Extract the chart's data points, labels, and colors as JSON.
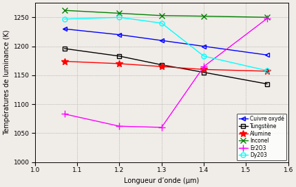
{
  "xlabel": "Longueur d’onde (μm)",
  "ylabel": "Températures de luminance (K)",
  "xlim": [
    1.0,
    1.6
  ],
  "ylim": [
    1000,
    1275
  ],
  "yticks": [
    1000,
    1050,
    1100,
    1150,
    1200,
    1250
  ],
  "xticks": [
    1.0,
    1.1,
    1.2,
    1.3,
    1.4,
    1.5,
    1.6
  ],
  "series": {
    "Cuivre oxydé": {
      "x": [
        1.07,
        1.2,
        1.3,
        1.4,
        1.55
      ],
      "y": [
        1230,
        1220,
        1210,
        1200,
        1185
      ],
      "color": "blue",
      "marker": "<",
      "markersize": 5,
      "markerfacecolor": "none",
      "linewidth": 1.0
    },
    "Tungstène": {
      "x": [
        1.07,
        1.2,
        1.3,
        1.4,
        1.55
      ],
      "y": [
        1196,
        1183,
        1168,
        1155,
        1135
      ],
      "color": "black",
      "marker": "s",
      "markersize": 4,
      "markerfacecolor": "none",
      "linewidth": 1.0
    },
    "Alumine": {
      "x": [
        1.07,
        1.2,
        1.3,
        1.4,
        1.55
      ],
      "y": [
        1174,
        1170,
        1165,
        1160,
        1157
      ],
      "color": "red",
      "marker": "*",
      "markersize": 7,
      "markerfacecolor": "red",
      "linewidth": 1.0
    },
    "Inconel": {
      "x": [
        1.07,
        1.2,
        1.3,
        1.4,
        1.55
      ],
      "y": [
        1262,
        1257,
        1253,
        1252,
        1250
      ],
      "color": "green",
      "marker": "x",
      "markersize": 6,
      "markerfacecolor": "green",
      "linewidth": 1.0
    },
    "Er2O3": {
      "x": [
        1.07,
        1.2,
        1.3,
        1.4,
        1.55
      ],
      "y": [
        1083,
        1062,
        1060,
        1165,
        1248
      ],
      "color": "magenta",
      "marker": "+",
      "markersize": 7,
      "markerfacecolor": "magenta",
      "linewidth": 1.0
    },
    "Dy203": {
      "x": [
        1.07,
        1.2,
        1.3,
        1.4,
        1.55
      ],
      "y": [
        1247,
        1250,
        1240,
        1183,
        1158
      ],
      "color": "cyan",
      "marker": "o",
      "markersize": 5,
      "markerfacecolor": "none",
      "linewidth": 1.0
    }
  },
  "background_color": "#f0ece8"
}
